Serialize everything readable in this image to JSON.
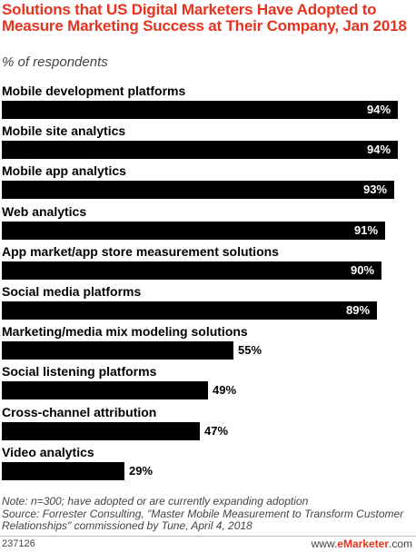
{
  "header": {
    "title": "Solutions that US Digital Marketers Have Adopted to Measure Marketing Success at Their Company, Jan 2018",
    "subtitle": "% of respondents"
  },
  "chart_data": {
    "type": "bar",
    "orientation": "horizontal",
    "categories": [
      "Mobile development platforms",
      "Mobile site analytics",
      "Mobile app analytics",
      "Web analytics",
      "App market/app store measurement solutions",
      "Social media platforms",
      "Marketing/media mix modeling solutions",
      "Social listening platforms",
      "Cross-channel attribution",
      "Video analytics"
    ],
    "values": [
      94,
      94,
      93,
      91,
      90,
      89,
      55,
      49,
      47,
      29
    ],
    "value_labels": [
      "94%",
      "94%",
      "93%",
      "91%",
      "90%",
      "89%",
      "55%",
      "49%",
      "47%",
      "29%"
    ],
    "xlim": [
      0,
      100
    ],
    "bar_color": "#000000"
  },
  "footer": {
    "note": "Note: n=300; have adopted or are currently expanding adoption",
    "source": "Source: Forrester Consulting, \"Master Mobile Measurement to Transform Customer Relationships\" commissioned by Tune, April 4, 2018",
    "chart_id": "237126",
    "brand_prefix": "www.",
    "brand_name": "eMarketer",
    "brand_suffix": ".com"
  },
  "colors": {
    "title": "#e6331f",
    "bar": "#000000",
    "value_inside": "#ffffff",
    "value_outside": "#000000"
  }
}
